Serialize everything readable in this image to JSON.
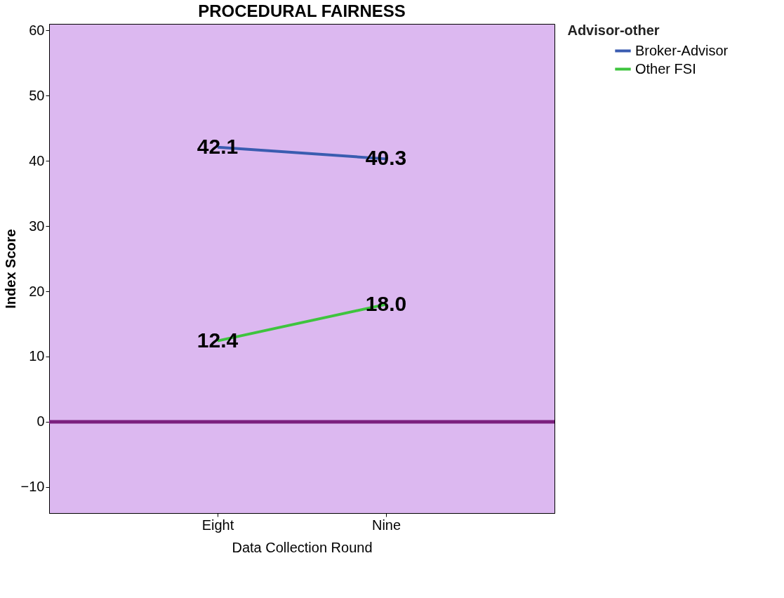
{
  "chart_data": {
    "type": "line",
    "title": "PROCEDURAL FAIRNESS",
    "xlabel": "Data Collection Round",
    "ylabel": "Index Score",
    "legend_title": "Advisor-other",
    "categories": [
      "Eight",
      "Nine"
    ],
    "series": [
      {
        "name": "Broker-Advisor",
        "color": "#3a5cb0",
        "values": [
          42.1,
          40.3
        ],
        "value_labels": [
          "42.1",
          "40.3"
        ]
      },
      {
        "name": "Other FSI",
        "color": "#3ec43e",
        "values": [
          12.4,
          18.0
        ],
        "value_labels": [
          "12.4",
          "18.0"
        ]
      }
    ],
    "ylim": [
      -14,
      61
    ],
    "yticks": [
      -10,
      0,
      10,
      20,
      30,
      40,
      50,
      60
    ],
    "ref_lines": [
      {
        "axis": "y",
        "value": 0,
        "color": "#7b1f7e"
      }
    ],
    "legend": "top right",
    "grid": false,
    "marker": "none",
    "line_style": "solid"
  }
}
